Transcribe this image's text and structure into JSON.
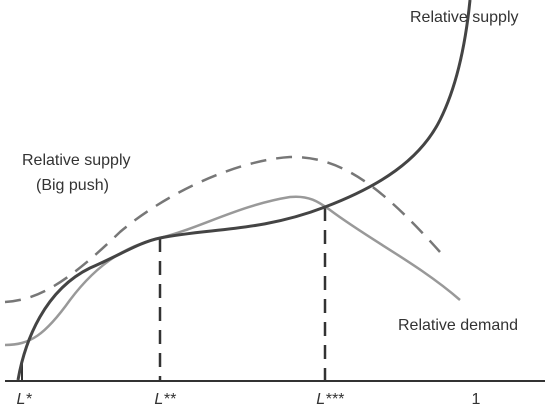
{
  "curves": {
    "supply": {
      "label": "Relative supply"
    },
    "big_push": {
      "label": "Relative supply",
      "sublabel": "(Big push)"
    },
    "demand": {
      "label": "Relative demand"
    }
  },
  "axis": {
    "ticks": [
      "L*",
      "L**",
      "L***",
      "1"
    ]
  }
}
